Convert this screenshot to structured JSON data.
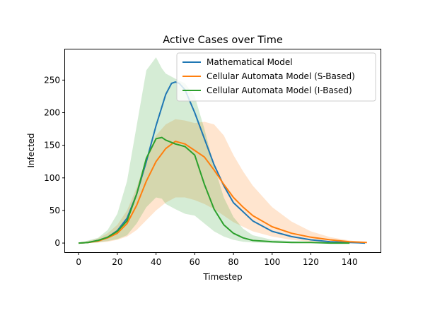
{
  "chart_data": {
    "type": "line",
    "title": "Active Cases over Time",
    "xlabel": "Timestep",
    "ylabel": "Infected",
    "xlim": [
      -7,
      156
    ],
    "ylim": [
      -14,
      297
    ],
    "xticks": [
      0,
      20,
      40,
      60,
      80,
      100,
      120,
      140
    ],
    "yticks": [
      0,
      50,
      100,
      150,
      200,
      250
    ],
    "grid": false,
    "legend_position": "top-right",
    "series": [
      {
        "name": "Mathematical Model",
        "color": "#1f77b4",
        "x": [
          0,
          5,
          10,
          15,
          20,
          25,
          30,
          35,
          40,
          45,
          48,
          50,
          52,
          55,
          60,
          65,
          70,
          75,
          80,
          90,
          100,
          110,
          120,
          130,
          140,
          148
        ],
        "values": [
          0,
          1,
          4,
          9,
          19,
          38,
          75,
          125,
          180,
          228,
          245,
          247,
          245,
          235,
          200,
          160,
          120,
          88,
          62,
          34,
          18,
          10,
          5,
          2,
          1,
          0
        ]
      },
      {
        "name": "Cellular Automata Model (S-Based)",
        "color": "#ff7f0e",
        "x": [
          0,
          5,
          10,
          15,
          20,
          25,
          30,
          35,
          40,
          45,
          50,
          55,
          60,
          65,
          70,
          75,
          80,
          85,
          90,
          100,
          110,
          120,
          130,
          140,
          149
        ],
        "values": [
          0,
          1,
          3,
          8,
          15,
          30,
          58,
          95,
          125,
          145,
          156,
          152,
          142,
          132,
          112,
          90,
          70,
          55,
          42,
          25,
          15,
          9,
          5,
          2,
          1
        ],
        "band_lower": [
          0,
          0,
          1,
          2,
          5,
          10,
          20,
          35,
          50,
          62,
          70,
          70,
          66,
          60,
          52,
          42,
          32,
          25,
          18,
          10,
          5,
          2,
          1,
          0,
          0
        ],
        "band_upper": [
          0,
          3,
          7,
          15,
          28,
          50,
          85,
          130,
          165,
          182,
          190,
          188,
          184,
          186,
          182,
          165,
          135,
          110,
          88,
          55,
          33,
          18,
          9,
          4,
          1
        ]
      },
      {
        "name": "Cellular Automata Model (I-Based)",
        "color": "#2ca02c",
        "x": [
          0,
          5,
          10,
          15,
          20,
          25,
          30,
          35,
          40,
          43,
          45,
          50,
          55,
          60,
          65,
          70,
          75,
          80,
          85,
          90,
          100,
          110,
          120,
          130,
          140
        ],
        "values": [
          0,
          1,
          4,
          9,
          18,
          34,
          75,
          130,
          160,
          162,
          158,
          152,
          148,
          135,
          90,
          52,
          28,
          15,
          8,
          4,
          2,
          1,
          1,
          0,
          0
        ],
        "band_lower": [
          0,
          0,
          1,
          3,
          6,
          12,
          30,
          55,
          70,
          68,
          60,
          52,
          45,
          42,
          30,
          18,
          10,
          5,
          2,
          1,
          0,
          0,
          0,
          0,
          0
        ],
        "band_upper": [
          0,
          4,
          8,
          20,
          45,
          95,
          180,
          265,
          285,
          268,
          260,
          252,
          245,
          225,
          175,
          118,
          70,
          40,
          22,
          12,
          5,
          3,
          2,
          1,
          0
        ]
      }
    ]
  }
}
